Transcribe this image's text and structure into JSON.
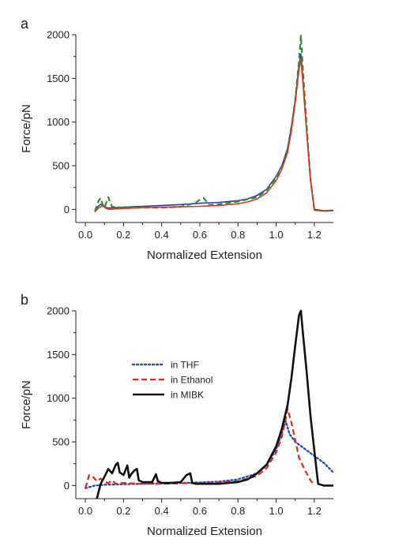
{
  "chart_data": [
    {
      "type": "line",
      "panel_label": "a",
      "xlabel": "Normalized Extension",
      "ylabel": "Force/pN",
      "xlim": [
        -0.05,
        1.3
      ],
      "ylim": [
        -150,
        2000
      ],
      "xticks": [
        "0.0",
        "0.2",
        "0.4",
        "0.6",
        "0.8",
        "1.0",
        "1.2"
      ],
      "yticks": [
        "0",
        "500",
        "1000",
        "1500",
        "2000"
      ],
      "grid": false,
      "series": [
        {
          "color": "#2b3f9e",
          "dash": "solid",
          "x": [
            0.05,
            0.06,
            0.08,
            0.1,
            0.12,
            0.15,
            0.2,
            0.3,
            0.4,
            0.5,
            0.6,
            0.7,
            0.8,
            0.85,
            0.9,
            0.95,
            1.0,
            1.03,
            1.06,
            1.08,
            1.1,
            1.12,
            1.13,
            1.14,
            1.16,
            1.18,
            1.2,
            1.25,
            1.3
          ],
          "y": [
            -20,
            20,
            60,
            30,
            15,
            20,
            25,
            35,
            45,
            55,
            70,
            80,
            100,
            120,
            160,
            230,
            380,
            500,
            700,
            950,
            1250,
            1650,
            1780,
            1500,
            900,
            350,
            0,
            -15,
            -10
          ]
        },
        {
          "color": "#2f8b3a",
          "dash": "dashed",
          "x": [
            0.05,
            0.07,
            0.08,
            0.09,
            0.1,
            0.11,
            0.12,
            0.14,
            0.2,
            0.3,
            0.4,
            0.5,
            0.55,
            0.58,
            0.6,
            0.62,
            0.65,
            0.7,
            0.8,
            0.9,
            0.95,
            1.0,
            1.03,
            1.06,
            1.08,
            1.1,
            1.12,
            1.13,
            1.14,
            1.16,
            1.18,
            1.2,
            1.25,
            1.3
          ],
          "y": [
            -20,
            100,
            130,
            60,
            20,
            80,
            140,
            30,
            20,
            20,
            20,
            30,
            60,
            80,
            110,
            130,
            50,
            60,
            90,
            140,
            220,
            360,
            480,
            680,
            930,
            1250,
            1700,
            1990,
            1600,
            950,
            350,
            0,
            -20,
            -10
          ]
        },
        {
          "color": "#d63a22",
          "dash": "solid",
          "x": [
            0.05,
            0.07,
            0.09,
            0.11,
            0.13,
            0.15,
            0.2,
            0.3,
            0.4,
            0.5,
            0.6,
            0.7,
            0.8,
            0.85,
            0.9,
            0.95,
            1.0,
            1.03,
            1.06,
            1.08,
            1.1,
            1.12,
            1.13,
            1.14,
            1.16,
            1.18,
            1.2,
            1.25,
            1.3
          ],
          "y": [
            -30,
            20,
            40,
            10,
            0,
            5,
            10,
            20,
            25,
            30,
            35,
            45,
            65,
            85,
            120,
            190,
            330,
            460,
            650,
            900,
            1220,
            1600,
            1720,
            1450,
            880,
            330,
            -10,
            -20,
            -15
          ]
        }
      ]
    },
    {
      "type": "line",
      "panel_label": "b",
      "xlabel": "Normalized Extension",
      "ylabel": "Force/pN",
      "xlim": [
        -0.05,
        1.3
      ],
      "ylim": [
        -150,
        2000
      ],
      "xticks": [
        "0.0",
        "0.2",
        "0.4",
        "0.6",
        "0.8",
        "1.0",
        "1.2"
      ],
      "yticks": [
        "0",
        "500",
        "1000",
        "1500",
        "2000"
      ],
      "grid": false,
      "legend_position": "upper-left",
      "series": [
        {
          "name": "in THF",
          "color": "#2b4fb0",
          "dash": "dotted",
          "x": [
            0.0,
            0.05,
            0.1,
            0.2,
            0.3,
            0.4,
            0.5,
            0.6,
            0.7,
            0.8,
            0.9,
            0.95,
            1.0,
            1.03,
            1.05,
            1.07,
            1.1,
            1.15,
            1.2,
            1.25,
            1.3
          ],
          "y": [
            -30,
            0,
            10,
            15,
            20,
            25,
            30,
            35,
            45,
            70,
            140,
            230,
            420,
            600,
            740,
            590,
            500,
            420,
            340,
            260,
            150
          ]
        },
        {
          "name": "in Ethanol",
          "color": "#d92b1f",
          "dash": "dashed",
          "x": [
            0.0,
            0.02,
            0.04,
            0.06,
            0.08,
            0.1,
            0.12,
            0.14,
            0.16,
            0.2,
            0.3,
            0.4,
            0.5,
            0.6,
            0.7,
            0.8,
            0.9,
            0.95,
            1.0,
            1.03,
            1.05,
            1.06,
            1.08,
            1.1,
            1.12,
            1.15,
            1.18,
            1.2
          ],
          "y": [
            -30,
            120,
            100,
            50,
            80,
            40,
            30,
            60,
            20,
            30,
            20,
            20,
            25,
            30,
            35,
            50,
            110,
            200,
            380,
            560,
            760,
            880,
            720,
            520,
            320,
            180,
            60,
            10
          ]
        },
        {
          "name": "in MIBK",
          "color": "#111111",
          "dash": "solid",
          "x": [
            0.06,
            0.08,
            0.1,
            0.12,
            0.14,
            0.16,
            0.17,
            0.18,
            0.2,
            0.22,
            0.23,
            0.24,
            0.26,
            0.27,
            0.28,
            0.3,
            0.35,
            0.37,
            0.38,
            0.4,
            0.45,
            0.5,
            0.53,
            0.55,
            0.56,
            0.58,
            0.65,
            0.7,
            0.8,
            0.85,
            0.9,
            0.95,
            1.0,
            1.03,
            1.06,
            1.08,
            1.1,
            1.12,
            1.13,
            1.14,
            1.16,
            1.18,
            1.2,
            1.22,
            1.25,
            1.3
          ],
          "y": [
            -150,
            20,
            100,
            190,
            140,
            240,
            260,
            150,
            120,
            230,
            90,
            130,
            180,
            190,
            60,
            40,
            40,
            130,
            50,
            30,
            30,
            40,
            120,
            140,
            30,
            20,
            20,
            20,
            40,
            70,
            140,
            240,
            450,
            650,
            920,
            1230,
            1600,
            1950,
            2000,
            1750,
            1300,
            800,
            400,
            20,
            0,
            0
          ]
        }
      ]
    }
  ]
}
